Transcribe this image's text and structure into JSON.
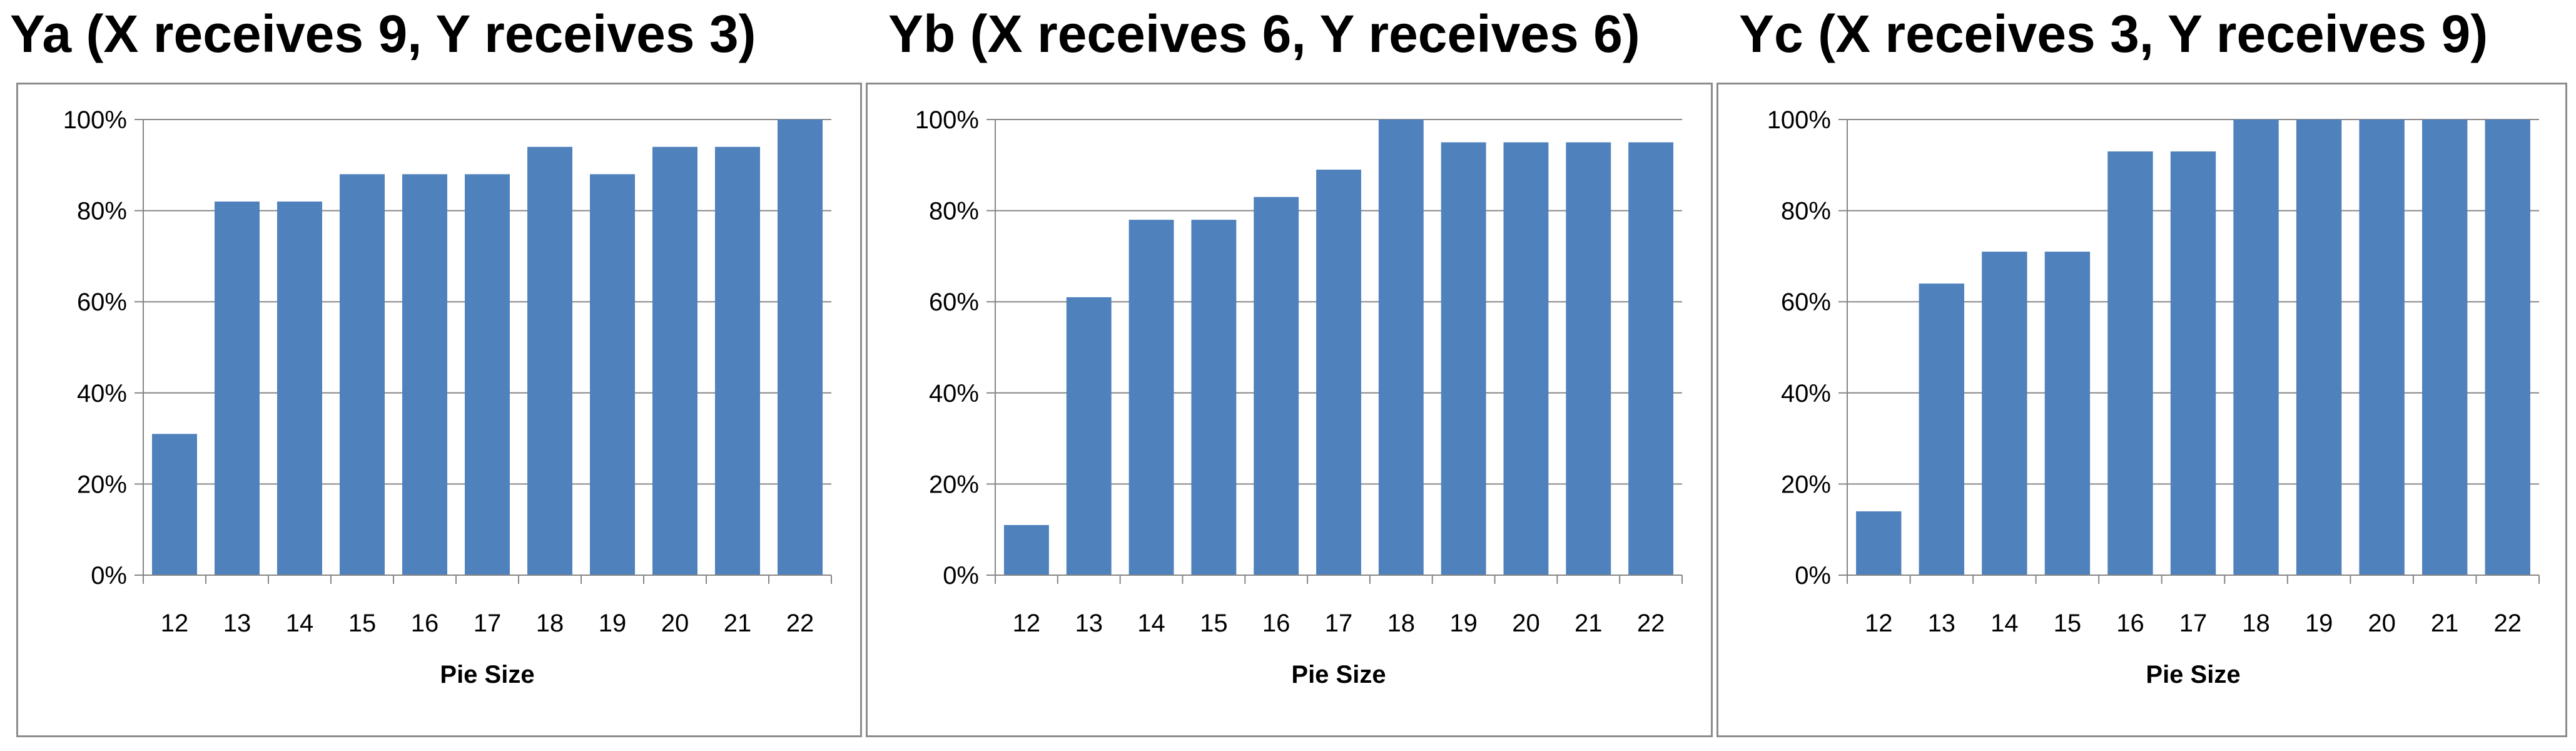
{
  "colors": {
    "bar": "#4f81bd",
    "grid": "#868686",
    "axis": "#868686",
    "border": "#8c8c8c"
  },
  "chart_data": [
    {
      "type": "bar",
      "title": "Ya (X receives 9, Y receives 3)",
      "xlabel": "Pie Size",
      "ylabel": "",
      "categories": [
        "12",
        "13",
        "14",
        "15",
        "16",
        "17",
        "18",
        "19",
        "20",
        "21",
        "22"
      ],
      "values": [
        31,
        82,
        82,
        88,
        88,
        88,
        94,
        88,
        94,
        94,
        100
      ],
      "ylim": [
        0,
        100
      ],
      "yticks": [
        "0%",
        "20%",
        "40%",
        "60%",
        "80%",
        "100%"
      ],
      "grid": true,
      "legend": "none"
    },
    {
      "type": "bar",
      "title": "Yb (X receives 6, Y receives 6)",
      "xlabel": "Pie Size",
      "ylabel": "",
      "categories": [
        "12",
        "13",
        "14",
        "15",
        "16",
        "17",
        "18",
        "19",
        "20",
        "21",
        "22"
      ],
      "values": [
        11,
        61,
        78,
        78,
        83,
        89,
        100,
        95,
        95,
        95,
        95
      ],
      "ylim": [
        0,
        100
      ],
      "yticks": [
        "0%",
        "20%",
        "40%",
        "60%",
        "80%",
        "100%"
      ],
      "grid": true,
      "legend": "none"
    },
    {
      "type": "bar",
      "title": "Yc (X receives 3, Y receives 9)",
      "xlabel": "Pie Size",
      "ylabel": "",
      "categories": [
        "12",
        "13",
        "14",
        "15",
        "16",
        "17",
        "18",
        "19",
        "20",
        "21",
        "22"
      ],
      "values": [
        14,
        64,
        71,
        71,
        93,
        93,
        100,
        100,
        100,
        100,
        100
      ],
      "ylim": [
        0,
        100
      ],
      "yticks": [
        "0%",
        "20%",
        "40%",
        "60%",
        "80%",
        "100%"
      ],
      "grid": true,
      "legend": "none"
    }
  ]
}
